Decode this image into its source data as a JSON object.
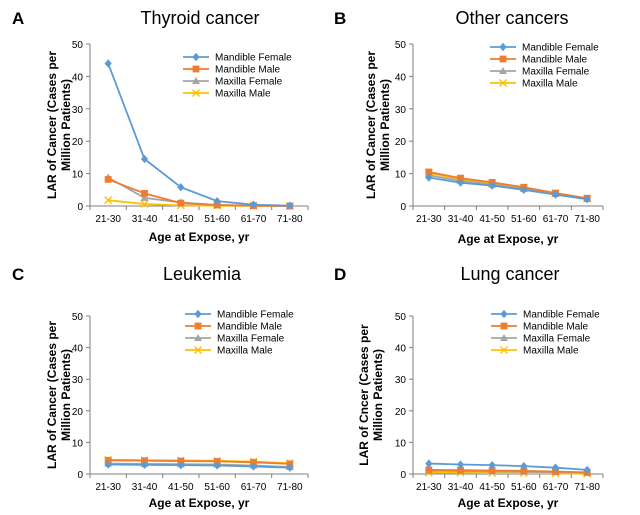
{
  "chart_data": [
    {
      "panel_letter": "A",
      "type": "line",
      "title": "Thyroid cancer",
      "xlabel": "Age at Expose, yr",
      "ylabel": "LAR of Cancer (Cases per Million Patients)",
      "ylabel_lines": [
        "LAR of Cancer (Cases per",
        "Million Patients)"
      ],
      "categories": [
        "21-30",
        "31-40",
        "41-50",
        "51-60",
        "61-70",
        "71-80"
      ],
      "ylim": [
        0,
        50
      ],
      "yticks": [
        0,
        10,
        20,
        30,
        40,
        50
      ],
      "grid": false,
      "legend_position": "top-right",
      "series": [
        {
          "name": "Mandible Female",
          "values": [
            44.0,
            14.5,
            5.8,
            1.5,
            0.4,
            0.1
          ]
        },
        {
          "name": "Mandible Male",
          "values": [
            8.2,
            3.9,
            0.9,
            0.3,
            0.1,
            0.0
          ]
        },
        {
          "name": "Maxilla Female",
          "values": [
            8.8,
            2.5,
            1.1,
            0.3,
            0.1,
            0.0
          ]
        },
        {
          "name": "Maxilla Male",
          "values": [
            1.8,
            0.6,
            0.2,
            0.1,
            0.0,
            0.0
          ]
        }
      ]
    },
    {
      "panel_letter": "B",
      "type": "line",
      "title": "Other cancers",
      "xlabel": "Age at Expose, yr",
      "ylabel": "LAR of Cancer (Cases per Million Patients)",
      "ylabel_lines": [
        "LAR of Cancer (Cases per",
        "Million Patients)"
      ],
      "categories": [
        "21-30",
        "31-40",
        "41-50",
        "51-60",
        "61-70",
        "71-80"
      ],
      "ylim": [
        0,
        50
      ],
      "yticks": [
        0,
        10,
        20,
        30,
        40,
        50
      ],
      "grid": false,
      "legend_position": "top-right",
      "series": [
        {
          "name": "Mandible Female",
          "values": [
            8.8,
            7.2,
            6.3,
            5.0,
            3.5,
            2.1
          ]
        },
        {
          "name": "Mandible Male",
          "values": [
            10.5,
            8.6,
            7.3,
            5.8,
            4.0,
            2.4
          ]
        },
        {
          "name": "Maxilla Female",
          "values": [
            9.5,
            7.8,
            6.6,
            5.3,
            3.7,
            2.2
          ]
        },
        {
          "name": "Maxilla Male",
          "values": [
            10.2,
            8.3,
            7.0,
            5.6,
            3.9,
            2.3
          ]
        }
      ]
    },
    {
      "panel_letter": "C",
      "type": "line",
      "title": "Leukemia",
      "xlabel": "Age at Expose, yr",
      "ylabel": "LAR of Cancer (Cases per Million Patients)",
      "ylabel_lines": [
        "LAR of Cancer (Cases per",
        "Million Patients)"
      ],
      "categories": [
        "21-30",
        "31-40",
        "41-50",
        "51-60",
        "61-70",
        "71-80"
      ],
      "ylim": [
        0,
        50
      ],
      "yticks": [
        0,
        10,
        20,
        30,
        40,
        50
      ],
      "grid": false,
      "legend_position": "top-right",
      "series": [
        {
          "name": "Mandible Female",
          "values": [
            3.0,
            2.9,
            2.8,
            2.7,
            2.4,
            2.0
          ]
        },
        {
          "name": "Mandible Male",
          "values": [
            4.3,
            4.2,
            4.1,
            4.0,
            3.7,
            3.2
          ]
        },
        {
          "name": "Maxilla Female",
          "values": [
            3.3,
            3.2,
            3.1,
            3.0,
            2.7,
            2.2
          ]
        },
        {
          "name": "Maxilla Male",
          "values": [
            4.5,
            4.4,
            4.3,
            4.2,
            3.9,
            3.4
          ]
        }
      ]
    },
    {
      "panel_letter": "D",
      "type": "line",
      "title": "Lung cancer",
      "xlabel": "Age at Expose, yr",
      "ylabel": "LAR of Cncer (Cases per Million Patients)",
      "ylabel_lines": [
        "LAR of Cncer (Cases per",
        "Million Patients)"
      ],
      "categories": [
        "21-30",
        "31-40",
        "41-50",
        "51-60",
        "61-70",
        "71-80"
      ],
      "ylim": [
        0,
        50
      ],
      "yticks": [
        0,
        10,
        20,
        30,
        40,
        50
      ],
      "grid": false,
      "legend_position": "top-right",
      "series": [
        {
          "name": "Mandible Female",
          "values": [
            3.3,
            3.0,
            2.8,
            2.5,
            2.0,
            1.3
          ]
        },
        {
          "name": "Mandible Male",
          "values": [
            1.3,
            1.2,
            1.1,
            1.0,
            0.8,
            0.5
          ]
        },
        {
          "name": "Maxilla Female",
          "values": [
            1.0,
            0.9,
            0.8,
            0.7,
            0.6,
            0.4
          ]
        },
        {
          "name": "Maxilla Male",
          "values": [
            0.4,
            0.4,
            0.3,
            0.3,
            0.2,
            0.1
          ]
        }
      ]
    }
  ],
  "colors": {
    "Mandible Female": "#5b9bd5",
    "Mandible Male": "#ed7d31",
    "Maxilla Female": "#a5a5a5",
    "Maxilla Male": "#ffc000",
    "axis": "#7f7f7f",
    "text": "#000000"
  },
  "markers": {
    "Mandible Female": "diamond",
    "Mandible Male": "square",
    "Maxilla Female": "triangle",
    "Maxilla Male": "x"
  }
}
